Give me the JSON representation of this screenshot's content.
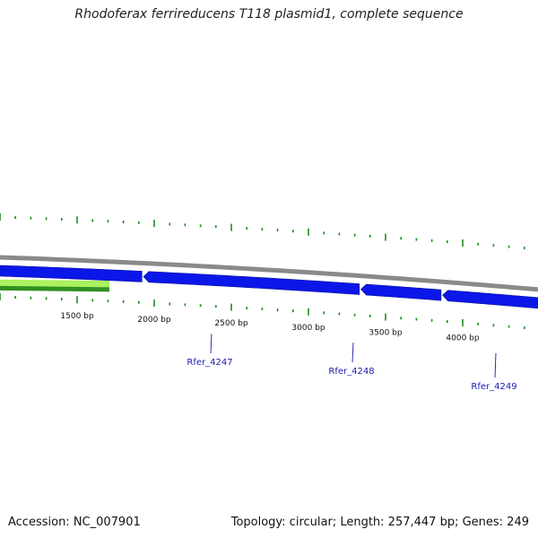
{
  "title": "Rhodoferax ferrireducens T118 plasmid1, complete sequence",
  "footer": {
    "accession": "Accession: NC_007901",
    "summary": "Topology: circular; Length: 257,447 bp; Genes: 249"
  },
  "colors": {
    "forward_gene": "#0a17e8",
    "backbone": "#8a8a8a",
    "ticks": "#1f8a1f",
    "gc_band_light": "#aaf25e",
    "gc_band_dark": "#2f8f1f",
    "label": "#1c1cb0"
  },
  "ticks": [
    {
      "bp": 1500,
      "label": "1500 bp"
    },
    {
      "bp": 2000,
      "label": "2000 bp"
    },
    {
      "bp": 2500,
      "label": "2500 bp"
    },
    {
      "bp": 3000,
      "label": "3000 bp"
    },
    {
      "bp": 3500,
      "label": "3500 bp"
    },
    {
      "bp": 4000,
      "label": "4000 bp"
    }
  ],
  "genes": [
    {
      "name": "",
      "start": 1000,
      "end": 1920,
      "strand": "+"
    },
    {
      "name": "Rfer_4247",
      "start": 1930,
      "end": 3330,
      "strand": "-"
    },
    {
      "name": "Rfer_4248",
      "start": 3340,
      "end": 3860,
      "strand": "-"
    },
    {
      "name": "Rfer_4249",
      "start": 3870,
      "end": 4900,
      "strand": "-"
    }
  ]
}
